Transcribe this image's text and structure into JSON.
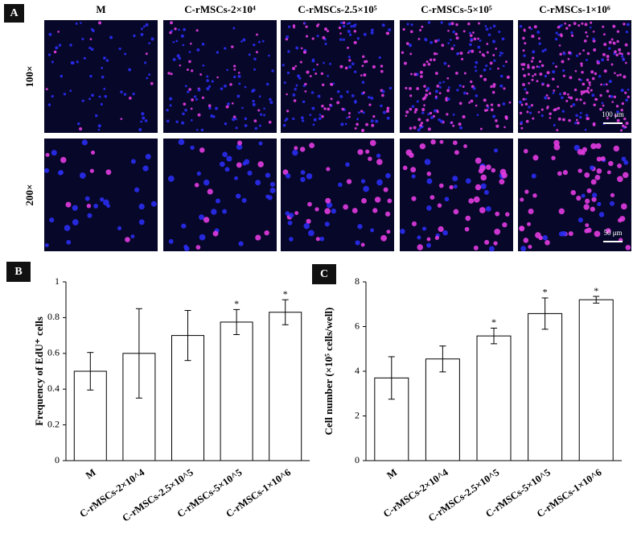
{
  "panel_labels": [
    "A",
    "B",
    "C"
  ],
  "panel_a": {
    "columns": [
      "M",
      "C-rMSCs-2×10⁴",
      "C-rMSCs-2.5×10⁵",
      "C-rMSCs-5×10⁵",
      "C-rMSCs-1×10⁶"
    ],
    "rows": [
      "100×",
      "200×"
    ],
    "scale_bars": [
      "100 μm",
      "50 μm"
    ]
  },
  "chart_data": [
    {
      "type": "bar",
      "y_label": "Frequency of  EdU⁺ cells",
      "categories": [
        "M",
        "C-rMSCs-2×10^4",
        "C-rMSCs-2.5×10^5",
        "C-rMSCs-5×10^5",
        "C-rMSCs-1×10^6"
      ],
      "values": [
        0.5,
        0.6,
        0.7,
        0.775,
        0.83
      ],
      "errors": [
        0.105,
        0.25,
        0.14,
        0.07,
        0.07
      ],
      "color": "#ffffff",
      "ylim": [
        0,
        1
      ],
      "yticks": [
        0,
        0.2,
        0.4,
        0.6,
        0.8,
        1
      ],
      "annotations": [
        {
          "category": "C-rMSCs-5×10^5",
          "text": "*"
        },
        {
          "category": "C-rMSCs-1×10^6",
          "text": "*"
        }
      ]
    },
    {
      "type": "bar",
      "y_label": "Cell number (×10⁵ cells/well)",
      "categories": [
        "M",
        "C-rMSCs-2×10^4",
        "C-rMSCs-2.5×10^5",
        "C-rMSCs-5×10^5",
        "C-rMSCs-1×10^6"
      ],
      "values": [
        3.7,
        4.55,
        5.58,
        6.58,
        7.2
      ],
      "errors": [
        0.95,
        0.58,
        0.35,
        0.7,
        0.15
      ],
      "color": "#ffffff",
      "ylim": [
        0,
        8
      ],
      "yticks": [
        0,
        2,
        4,
        6,
        8
      ],
      "annotations": [
        {
          "category": "C-rMSCs-2.5×10^5",
          "text": "*"
        },
        {
          "category": "C-rMSCs-5×10^5",
          "text": "*"
        },
        {
          "category": "C-rMSCs-1×10^6",
          "text": "*"
        }
      ]
    }
  ]
}
